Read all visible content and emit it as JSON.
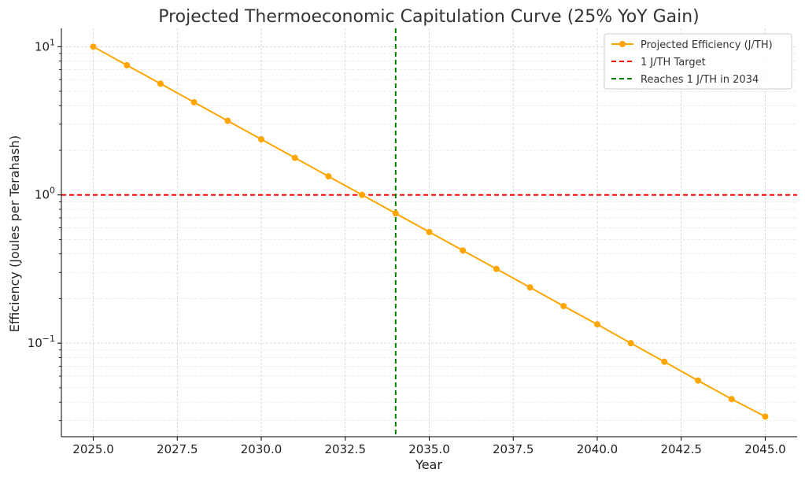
{
  "chart_data": {
    "type": "line",
    "title": "Projected Thermoeconomic Capitulation Curve (25% YoY Gain)",
    "xlabel": "Year",
    "ylabel": "Efficiency (Joules per Terahash)",
    "yscale": "log",
    "xlim": [
      2024.05,
      2045.95
    ],
    "ylim": [
      0.0234,
      13.3
    ],
    "xticks": [
      2025.0,
      2027.5,
      2030.0,
      2032.5,
      2035.0,
      2037.5,
      2040.0,
      2042.5,
      2045.0
    ],
    "xtick_labels": [
      "2025.0",
      "2027.5",
      "2030.0",
      "2032.5",
      "2035.0",
      "2037.5",
      "2040.0",
      "2042.5",
      "2045.0"
    ],
    "yticks": [
      {
        "base": "10",
        "exp": "1",
        "value": 10
      },
      {
        "base": "10",
        "exp": "0",
        "value": 1
      },
      {
        "base": "10",
        "exp": "−1",
        "value": 0.1
      }
    ],
    "grid": true,
    "legend_position": "top-right",
    "series": [
      {
        "name": "Projected Efficiency (J/TH)",
        "color": "#FFA500",
        "marker": "circle",
        "x": [
          2025,
          2026,
          2027,
          2028,
          2029,
          2030,
          2031,
          2032,
          2033,
          2034,
          2035,
          2036,
          2037,
          2038,
          2039,
          2040,
          2041,
          2042,
          2043,
          2044,
          2045
        ],
        "y": [
          10.0,
          7.5,
          5.625,
          4.219,
          3.164,
          2.373,
          1.78,
          1.335,
          1.001,
          0.751,
          0.563,
          0.422,
          0.317,
          0.238,
          0.178,
          0.134,
          0.1,
          0.075,
          0.056,
          0.042,
          0.032
        ]
      }
    ],
    "reference_lines": [
      {
        "name": "1 J/TH Target",
        "orientation": "horizontal",
        "value": 1,
        "color": "#FF0000",
        "style": "dashed"
      },
      {
        "name": "Reaches 1 J/TH in 2034",
        "orientation": "vertical",
        "value": 2034,
        "color": "#008000",
        "style": "dashed"
      }
    ]
  }
}
